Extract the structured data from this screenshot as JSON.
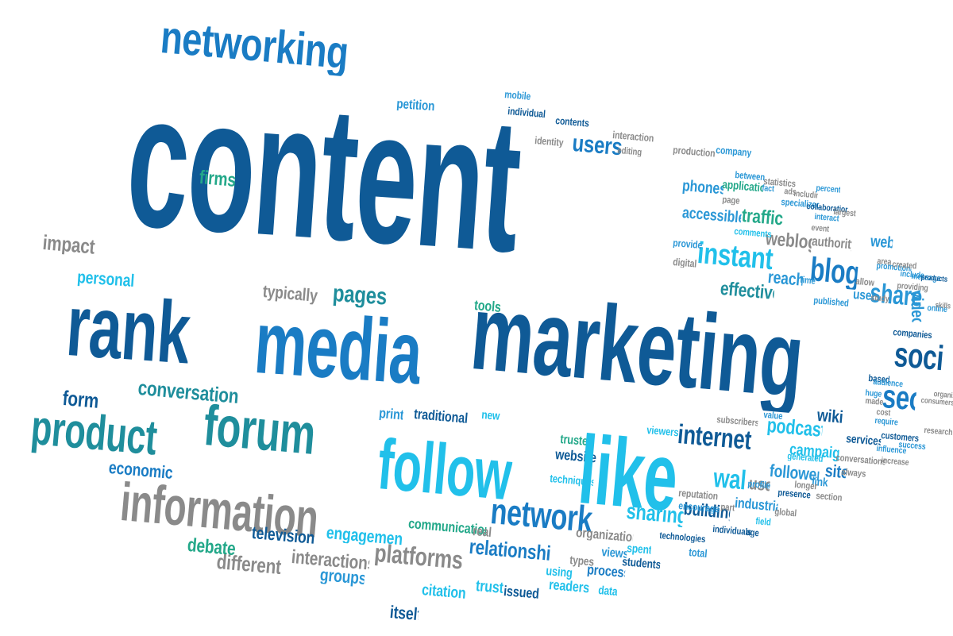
{
  "palette": {
    "navy": "#0f5a96",
    "blue": "#1a7cc4",
    "mid": "#2a97d6",
    "cyan": "#21c0ea",
    "teal": "#1f8e9c",
    "green": "#23a889",
    "gray": "#8a8a8a",
    "dark": "#555c63"
  },
  "words": [
    {
      "text": "networking",
      "c": "blue"
    },
    {
      "text": "content",
      "c": "navy"
    },
    {
      "text": "petition",
      "c": "mid"
    },
    {
      "text": "mobile",
      "c": "mid"
    },
    {
      "text": "individual",
      "c": "navy"
    },
    {
      "text": "contents",
      "c": "navy"
    },
    {
      "text": "interaction",
      "c": "gray"
    },
    {
      "text": "identity",
      "c": "gray"
    },
    {
      "text": "users",
      "c": "blue"
    },
    {
      "text": "editing",
      "c": "gray"
    },
    {
      "text": "production",
      "c": "gray"
    },
    {
      "text": "company",
      "c": "mid"
    },
    {
      "text": "firms",
      "c": "green"
    },
    {
      "text": "impact",
      "c": "gray"
    },
    {
      "text": "personal",
      "c": "cyan"
    },
    {
      "text": "rank",
      "c": "navy"
    },
    {
      "text": "media",
      "c": "blue"
    },
    {
      "text": "marketing",
      "c": "navy"
    },
    {
      "text": "typically",
      "c": "gray"
    },
    {
      "text": "pages",
      "c": "teal"
    },
    {
      "text": "tools",
      "c": "green"
    },
    {
      "text": "phones",
      "c": "mid"
    },
    {
      "text": "applications",
      "c": "green"
    },
    {
      "text": "accessible",
      "c": "mid"
    },
    {
      "text": "traffic",
      "c": "green"
    },
    {
      "text": "instant",
      "c": "cyan"
    },
    {
      "text": "weblog",
      "c": "gray"
    },
    {
      "text": "authority",
      "c": "gray"
    },
    {
      "text": "web",
      "c": "mid"
    },
    {
      "text": "blog",
      "c": "blue"
    },
    {
      "text": "reach",
      "c": "mid"
    },
    {
      "text": "effective",
      "c": "teal"
    },
    {
      "text": "share",
      "c": "mid"
    },
    {
      "text": "video",
      "c": "mid"
    },
    {
      "text": "social",
      "c": "navy"
    },
    {
      "text": "seo",
      "c": "blue"
    },
    {
      "text": "form",
      "c": "navy"
    },
    {
      "text": "conversation",
      "c": "teal"
    },
    {
      "text": "product",
      "c": "teal"
    },
    {
      "text": "forum",
      "c": "teal"
    },
    {
      "text": "print",
      "c": "mid"
    },
    {
      "text": "traditional",
      "c": "navy"
    },
    {
      "text": "new",
      "c": "cyan"
    },
    {
      "text": "economic",
      "c": "blue"
    },
    {
      "text": "follow",
      "c": "cyan"
    },
    {
      "text": "trusted",
      "c": "green"
    },
    {
      "text": "website",
      "c": "navy"
    },
    {
      "text": "like",
      "c": "cyan"
    },
    {
      "text": "viewers",
      "c": "cyan"
    },
    {
      "text": "internet",
      "c": "navy"
    },
    {
      "text": "podcast",
      "c": "cyan"
    },
    {
      "text": "wiki",
      "c": "navy"
    },
    {
      "text": "campaign",
      "c": "cyan"
    },
    {
      "text": "services",
      "c": "navy"
    },
    {
      "text": "information",
      "c": "gray"
    },
    {
      "text": "techniques",
      "c": "cyan"
    },
    {
      "text": "wall",
      "c": "cyan"
    },
    {
      "text": "followers",
      "c": "mid"
    },
    {
      "text": "site",
      "c": "blue"
    },
    {
      "text": "network",
      "c": "blue"
    },
    {
      "text": "building",
      "c": "navy"
    },
    {
      "text": "industrial",
      "c": "mid"
    },
    {
      "text": "sharing",
      "c": "cyan"
    },
    {
      "text": "engagement",
      "c": "cyan"
    },
    {
      "text": "communication",
      "c": "green"
    },
    {
      "text": "television",
      "c": "navy"
    },
    {
      "text": "debate",
      "c": "green"
    },
    {
      "text": "different",
      "c": "gray"
    },
    {
      "text": "interactions",
      "c": "gray"
    },
    {
      "text": "groups",
      "c": "mid"
    },
    {
      "text": "platforms",
      "c": "gray"
    },
    {
      "text": "relationships",
      "c": "blue"
    },
    {
      "text": "real",
      "c": "gray"
    },
    {
      "text": "organizations",
      "c": "gray"
    },
    {
      "text": "technologies",
      "c": "navy"
    },
    {
      "text": "citation",
      "c": "cyan"
    },
    {
      "text": "trust",
      "c": "cyan"
    },
    {
      "text": "issued",
      "c": "navy"
    },
    {
      "text": "using",
      "c": "cyan"
    },
    {
      "text": "types",
      "c": "gray"
    },
    {
      "text": "readers",
      "c": "cyan"
    },
    {
      "text": "process",
      "c": "blue"
    },
    {
      "text": "students",
      "c": "navy"
    },
    {
      "text": "views",
      "c": "mid"
    },
    {
      "text": "spent",
      "c": "cyan"
    },
    {
      "text": "data",
      "c": "cyan"
    },
    {
      "text": "itself",
      "c": "navy"
    },
    {
      "text": "total",
      "c": "mid"
    },
    {
      "text": "individuals",
      "c": "navy"
    },
    {
      "text": "reputation",
      "c": "gray"
    },
    {
      "text": "encourages",
      "c": "mid"
    },
    {
      "text": "use",
      "c": "gray"
    },
    {
      "text": "profile",
      "c": "mid"
    },
    {
      "text": "presence",
      "c": "navy"
    },
    {
      "text": "link",
      "c": "mid"
    },
    {
      "text": "subscribers",
      "c": "gray"
    },
    {
      "text": "value",
      "c": "mid"
    },
    {
      "text": "statistics",
      "c": "gray"
    },
    {
      "text": "specialized",
      "c": "mid"
    },
    {
      "text": "comments",
      "c": "cyan"
    },
    {
      "text": "provide",
      "c": "mid"
    },
    {
      "text": "digital",
      "c": "gray"
    },
    {
      "text": "between",
      "c": "mid"
    },
    {
      "text": "page",
      "c": "gray"
    },
    {
      "text": "fact",
      "c": "mid"
    },
    {
      "text": "ads",
      "c": "gray"
    },
    {
      "text": "including",
      "c": "gray"
    },
    {
      "text": "percent",
      "c": "mid"
    },
    {
      "text": "collaboration",
      "c": "navy"
    },
    {
      "text": "largest",
      "c": "gray"
    },
    {
      "text": "time",
      "c": "mid"
    },
    {
      "text": "published",
      "c": "mid"
    },
    {
      "text": "user",
      "c": "mid"
    },
    {
      "text": "allow",
      "c": "gray"
    },
    {
      "text": "companies",
      "c": "navy"
    },
    {
      "text": "online",
      "c": "mid"
    },
    {
      "text": "customers",
      "c": "navy"
    },
    {
      "text": "conversations",
      "c": "gray"
    },
    {
      "text": "always",
      "c": "gray"
    },
    {
      "text": "section",
      "c": "gray"
    },
    {
      "text": "global",
      "c": "gray"
    },
    {
      "text": "field",
      "c": "cyan"
    },
    {
      "text": "age",
      "c": "navy"
    },
    {
      "text": "part",
      "c": "gray"
    },
    {
      "text": "generated",
      "c": "cyan"
    },
    {
      "text": "longer",
      "c": "gray"
    },
    {
      "text": "interact",
      "c": "mid"
    },
    {
      "text": "event",
      "c": "gray"
    },
    {
      "text": "promotional",
      "c": "mid"
    },
    {
      "text": "include",
      "c": "mid"
    },
    {
      "text": "message",
      "c": "mid"
    },
    {
      "text": "products",
      "c": "navy"
    },
    {
      "text": "study",
      "c": "gray"
    },
    {
      "text": "based",
      "c": "navy"
    },
    {
      "text": "area",
      "c": "gray"
    },
    {
      "text": "success",
      "c": "mid"
    },
    {
      "text": "increase",
      "c": "gray"
    },
    {
      "text": "research",
      "c": "gray"
    },
    {
      "text": "influence",
      "c": "mid"
    },
    {
      "text": "created",
      "c": "gray"
    },
    {
      "text": "providing",
      "c": "gray"
    },
    {
      "text": "made",
      "c": "gray"
    },
    {
      "text": "skills",
      "c": "gray"
    },
    {
      "text": "cost",
      "c": "gray"
    },
    {
      "text": "organization",
      "c": "gray"
    },
    {
      "text": "audience",
      "c": "mid"
    },
    {
      "text": "huge",
      "c": "mid"
    },
    {
      "text": "require",
      "c": "mid"
    },
    {
      "text": "consumers",
      "c": "gray"
    }
  ]
}
